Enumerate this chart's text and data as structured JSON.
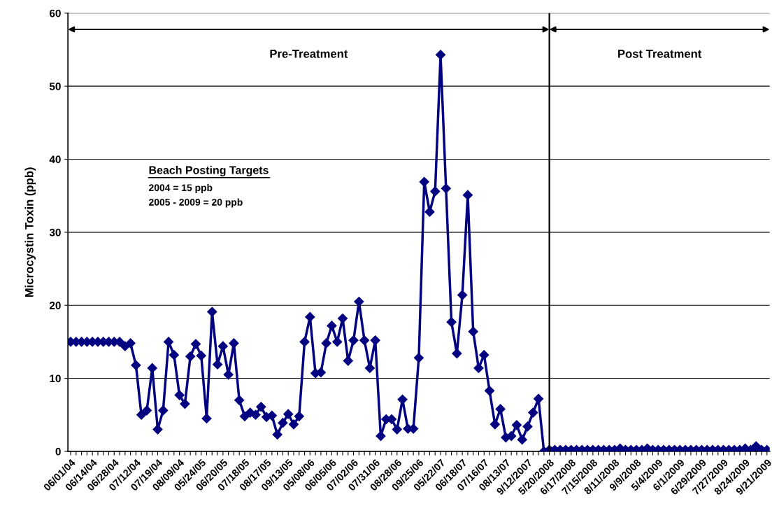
{
  "chart_data": {
    "type": "line",
    "ylabel": "Microcystin Toxin (ppb)",
    "categories": [
      "06/01/04",
      null,
      null,
      null,
      "06/14/04",
      null,
      null,
      null,
      "06/28/04",
      null,
      null,
      null,
      "07/12/04",
      null,
      null,
      null,
      "07/19/04",
      null,
      null,
      null,
      "08/09/04",
      null,
      null,
      null,
      "05/24/05",
      null,
      null,
      null,
      "06/20/05",
      null,
      null,
      null,
      "07/18/05",
      null,
      null,
      null,
      "08/17/05",
      null,
      null,
      null,
      "09/13/05",
      null,
      null,
      null,
      "05/08/06",
      null,
      null,
      null,
      "06/05/06",
      null,
      null,
      null,
      "07/02/06",
      null,
      null,
      null,
      "07/31/06",
      null,
      null,
      null,
      "08/28/06",
      null,
      null,
      null,
      "09/25/06",
      null,
      null,
      null,
      "05/22/07",
      null,
      null,
      null,
      "06/18/07",
      null,
      null,
      null,
      "07/16/07",
      null,
      null,
      null,
      "08/13/07",
      null,
      null,
      null,
      "9/12/2007",
      null,
      null,
      null,
      "5/20/2008",
      null,
      null,
      null,
      "6/17/2008",
      null,
      null,
      null,
      "7/15/2008",
      null,
      null,
      null,
      "8/11/2008",
      null,
      null,
      null,
      "9/9/2008",
      null,
      null,
      null,
      "5/4/2009",
      null,
      null,
      null,
      "6/1/2009",
      null,
      null,
      null,
      "6/29/2009",
      null,
      null,
      null,
      "7/27/2009",
      null,
      null,
      null,
      "8/24/2009",
      null,
      null,
      null,
      "9/21/2009"
    ],
    "series": [
      {
        "color": "#000080",
        "values": [
          15.0,
          15.0,
          15.0,
          15.0,
          15.0,
          15.0,
          15.0,
          15.0,
          15.0,
          15.0,
          14.4,
          14.8,
          11.8,
          5.0,
          5.6,
          11.4,
          3.0,
          5.6,
          15.0,
          13.2,
          7.7,
          6.5,
          13.0,
          14.7,
          13.1,
          4.5,
          19.1,
          11.9,
          14.4,
          10.5,
          14.8,
          7.0,
          4.8,
          5.3,
          5.0,
          6.1,
          4.7,
          4.9,
          2.3,
          3.9,
          5.1,
          3.7,
          4.8,
          15.0,
          18.4,
          10.7,
          10.8,
          14.8,
          17.2,
          15.0,
          18.2,
          12.4,
          15.2,
          20.5,
          15.2,
          11.4,
          15.2,
          2.1,
          4.4,
          4.4,
          3.0,
          7.1,
          3.1,
          3.1,
          12.8,
          36.9,
          32.8,
          35.6,
          54.3,
          36.0,
          17.7,
          13.4,
          21.4,
          35.1,
          16.4,
          11.4,
          13.2,
          8.3,
          3.7,
          5.8,
          1.9,
          2.1,
          3.6,
          1.6,
          3.4,
          5.3,
          7.2,
          0.0,
          0.2,
          0.2,
          0.2,
          0.2,
          0.2,
          0.2,
          0.2,
          0.2,
          0.2,
          0.2,
          0.2,
          0.2,
          0.2,
          0.4,
          0.2,
          0.2,
          0.2,
          0.2,
          0.4,
          0.2,
          0.2,
          0.2,
          0.2,
          0.2,
          0.2,
          0.2,
          0.2,
          0.2,
          0.2,
          0.2,
          0.2,
          0.2,
          0.2,
          0.2,
          0.2,
          0.2,
          0.4,
          0.2,
          0.7,
          0.2,
          0.2
        ]
      }
    ],
    "ylim": [
      0,
      60
    ],
    "yticks": [
      0,
      10,
      20,
      30,
      40,
      50,
      60
    ],
    "grid": "y",
    "legend": false,
    "marker": "diamond",
    "line_style": "solid",
    "ref_lines": [
      {
        "axis": "x",
        "value": "5/20/2008",
        "color": "#000000",
        "line_style": "solid"
      }
    ],
    "annotations": [
      "Pre-Treatment",
      "Post Treatment",
      "Beach Posting Targets",
      "2004 = 15 ppb",
      "2005 - 2009 = 20 ppb"
    ]
  }
}
